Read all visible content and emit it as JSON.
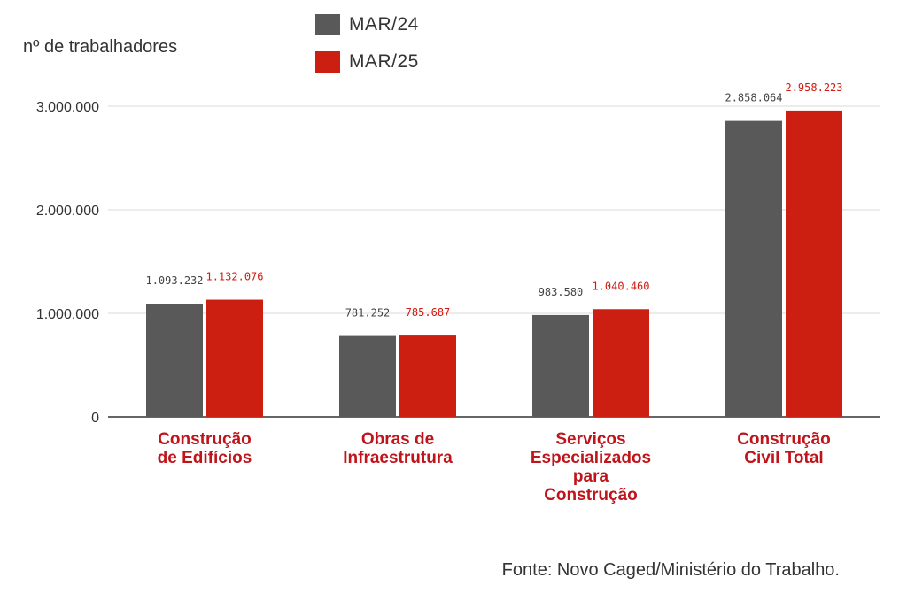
{
  "chart_data": {
    "type": "bar",
    "ylabel": "nº de trabalhadores",
    "ylim": [
      0,
      3000000
    ],
    "yticks": [
      "0",
      "1.000.000",
      "2.000.000",
      "3.000.000"
    ],
    "categories": [
      "Construção de Edifícios",
      "Obras de Infraestrutura",
      "Serviços Especializados para Construção",
      "Construção Civil Total"
    ],
    "category_lines": [
      [
        "Construção",
        "de Edifícios"
      ],
      [
        "Obras de",
        "Infraestrutura"
      ],
      [
        "Serviços",
        "Especializados",
        "para",
        "Construção"
      ],
      [
        "Construção",
        "Civil Total"
      ]
    ],
    "series": [
      {
        "name": "MAR/24",
        "color": "#595959",
        "values": [
          1093232,
          781252,
          983580,
          2858064
        ],
        "labels": [
          "1.093.232",
          "781.252",
          "983.580",
          "2.858.064"
        ]
      },
      {
        "name": "MAR/25",
        "color": "#cc1f12",
        "values": [
          1132076,
          785687,
          1040460,
          2958223
        ],
        "labels": [
          "1.132.076",
          "785.687",
          "1.040.460",
          "2.958.223"
        ]
      }
    ],
    "legend_position": "top",
    "grid": true,
    "category_label_color": "#c0141b",
    "source": "Fonte: Novo Caged/Ministério do Trabalho."
  }
}
